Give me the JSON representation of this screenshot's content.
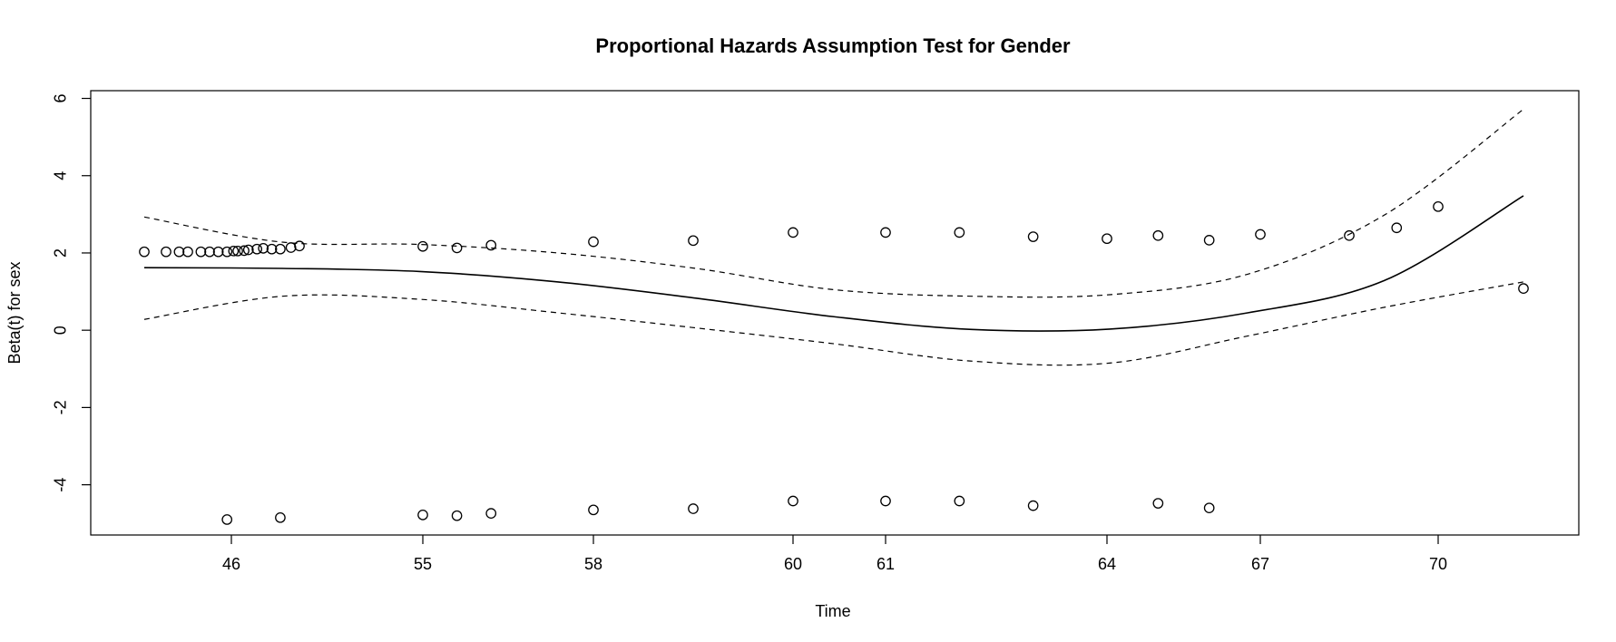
{
  "chart_data": {
    "type": "scatter",
    "title": "Proportional Hazards Assumption Test for Gender",
    "xlabel": "Time",
    "ylabel": "Beta(t) for sex",
    "x_scale": "rank-transformed time",
    "x_tick_labels": [
      "46",
      "55",
      "58",
      "60",
      "61",
      "64",
      "67",
      "70"
    ],
    "y_ticks": [
      -4,
      -2,
      0,
      2,
      4,
      6
    ],
    "y_tick_labels": [
      "-4",
      "-2",
      "0",
      "2",
      "4",
      "6"
    ],
    "ylim": [
      -5.3,
      6.2
    ],
    "grid": false,
    "legend": "none",
    "series": [
      {
        "kind": "residuals",
        "marker": "open-circle",
        "points": [
          [
            "44",
            2.03
          ],
          [
            "44.5",
            2.03
          ],
          [
            "44.8",
            2.03
          ],
          [
            "45",
            2.03
          ],
          [
            "45.3",
            2.03
          ],
          [
            "45.5",
            2.03
          ],
          [
            "45.7",
            2.03
          ],
          [
            "45.9",
            2.03
          ],
          [
            "46.1",
            2.05
          ],
          [
            "46.3",
            2.05
          ],
          [
            "46.6",
            2.06
          ],
          [
            "46.8",
            2.08
          ],
          [
            "47.2",
            2.1
          ],
          [
            "47.5",
            2.12
          ],
          [
            "47.9",
            2.1
          ],
          [
            "48.3",
            2.1
          ],
          [
            "48.8",
            2.14
          ],
          [
            "49.2",
            2.18
          ],
          [
            "55",
            2.17
          ],
          [
            "55.6",
            2.13
          ],
          [
            "56.2",
            2.2
          ],
          [
            "58",
            2.29
          ],
          [
            "59",
            2.32
          ],
          [
            "60",
            2.53
          ],
          [
            "61",
            2.53
          ],
          [
            "62",
            2.53
          ],
          [
            "63",
            2.42
          ],
          [
            "64",
            2.37
          ],
          [
            "65",
            2.45
          ],
          [
            "66",
            2.33
          ],
          [
            "67",
            2.48
          ],
          [
            "68.5",
            2.45
          ],
          [
            "69.3",
            2.65
          ],
          [
            "70",
            3.2
          ],
          [
            "71.5",
            1.08
          ],
          [
            "45.9",
            -4.9
          ],
          [
            "48.3",
            -4.85
          ],
          [
            "55",
            -4.78
          ],
          [
            "55.6",
            -4.8
          ],
          [
            "56.2",
            -4.74
          ],
          [
            "58",
            -4.65
          ],
          [
            "59",
            -4.62
          ],
          [
            "60",
            -4.42
          ],
          [
            "61",
            -4.42
          ],
          [
            "62",
            -4.42
          ],
          [
            "63",
            -4.54
          ],
          [
            "65",
            -4.48
          ],
          [
            "66",
            -4.6
          ]
        ]
      },
      {
        "kind": "smooth",
        "style": "solid",
        "points": [
          [
            0,
            1.62
          ],
          [
            0.1,
            1.6
          ],
          [
            0.2,
            1.52
          ],
          [
            0.3,
            1.25
          ],
          [
            0.4,
            0.83
          ],
          [
            0.5,
            0.35
          ],
          [
            0.6,
            0.02
          ],
          [
            0.7,
            0.03
          ],
          [
            0.8,
            0.45
          ],
          [
            0.9,
            1.3
          ],
          [
            1,
            3.48
          ]
        ]
      },
      {
        "kind": "upper-band",
        "style": "dashed",
        "points": [
          [
            0,
            2.93
          ],
          [
            0.1,
            2.28
          ],
          [
            0.2,
            2.22
          ],
          [
            0.3,
            2.0
          ],
          [
            0.4,
            1.6
          ],
          [
            0.5,
            1.05
          ],
          [
            0.6,
            0.88
          ],
          [
            0.7,
            0.92
          ],
          [
            0.8,
            1.45
          ],
          [
            0.9,
            3.0
          ],
          [
            1,
            5.72
          ]
        ]
      },
      {
        "kind": "lower-band",
        "style": "dashed",
        "points": [
          [
            0,
            0.28
          ],
          [
            0.1,
            0.88
          ],
          [
            0.2,
            0.8
          ],
          [
            0.3,
            0.45
          ],
          [
            0.4,
            0.06
          ],
          [
            0.5,
            -0.35
          ],
          [
            0.6,
            -0.8
          ],
          [
            0.7,
            -0.85
          ],
          [
            0.8,
            -0.15
          ],
          [
            0.9,
            0.6
          ],
          [
            1,
            1.25
          ]
        ]
      }
    ]
  }
}
